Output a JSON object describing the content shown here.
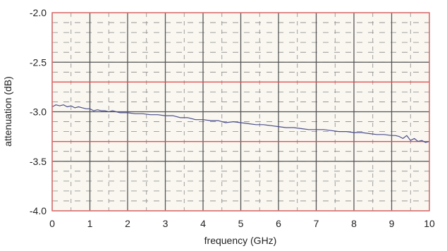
{
  "chart_data": {
    "type": "line",
    "title": "",
    "xlabel": "frequency (GHz)",
    "ylabel": "attenuation (dB)",
    "xlim": [
      0,
      10
    ],
    "ylim": [
      -4.0,
      -2.0
    ],
    "xticks": [
      0,
      1,
      2,
      3,
      4,
      5,
      6,
      7,
      8,
      9,
      10
    ],
    "xtick_labels": [
      "0",
      "1",
      "2",
      "3",
      "4",
      "5",
      "6",
      "7",
      "8",
      "9",
      "10"
    ],
    "yticks": [
      -2.0,
      -2.5,
      -3.0,
      -3.5,
      -4.0
    ],
    "ytick_labels": [
      "-2.0",
      "-2.5",
      "-3.0",
      "-3.5",
      "-4.0"
    ],
    "grid": true,
    "limit_lines": [
      -2.7,
      -3.3
    ],
    "series": [
      {
        "x": [
          0.0,
          0.1,
          0.2,
          0.3,
          0.4,
          0.5,
          0.6,
          0.7,
          0.8,
          0.9,
          1.0,
          1.1,
          1.2,
          1.3,
          1.4,
          1.5,
          1.6,
          1.7,
          1.8,
          1.9,
          2.0,
          2.2,
          2.4,
          2.6,
          2.8,
          3.0,
          3.2,
          3.4,
          3.6,
          3.8,
          4.0,
          4.2,
          4.4,
          4.6,
          4.8,
          5.0,
          5.2,
          5.4,
          5.6,
          5.8,
          6.0,
          6.2,
          6.4,
          6.6,
          6.8,
          7.0,
          7.2,
          7.4,
          7.6,
          7.8,
          8.0,
          8.2,
          8.4,
          8.6,
          8.8,
          9.0,
          9.1,
          9.2,
          9.3,
          9.4,
          9.5,
          9.6,
          9.7,
          9.8,
          9.9,
          10.0
        ],
        "values": [
          -2.95,
          -2.93,
          -2.94,
          -2.93,
          -2.95,
          -2.94,
          -2.96,
          -2.95,
          -2.96,
          -2.97,
          -2.97,
          -2.99,
          -2.98,
          -2.99,
          -2.99,
          -3.0,
          -2.99,
          -3.0,
          -3.01,
          -3.01,
          -3.01,
          -3.02,
          -3.02,
          -3.03,
          -3.03,
          -3.04,
          -3.04,
          -3.06,
          -3.06,
          -3.08,
          -3.08,
          -3.09,
          -3.09,
          -3.11,
          -3.1,
          -3.11,
          -3.12,
          -3.13,
          -3.13,
          -3.14,
          -3.15,
          -3.16,
          -3.16,
          -3.17,
          -3.18,
          -3.18,
          -3.18,
          -3.19,
          -3.2,
          -3.2,
          -3.21,
          -3.21,
          -3.22,
          -3.23,
          -3.23,
          -3.24,
          -3.24,
          -3.25,
          -3.27,
          -3.24,
          -3.29,
          -3.27,
          -3.3,
          -3.29,
          -3.31,
          -3.3
        ],
        "color": "#4a4e8c"
      }
    ],
    "colors": {
      "plot_background": "#faf7f1",
      "major_grid": "#555555",
      "minor_grid": "#888888",
      "limit_line": "#e05050",
      "frame": "#e07070"
    }
  }
}
